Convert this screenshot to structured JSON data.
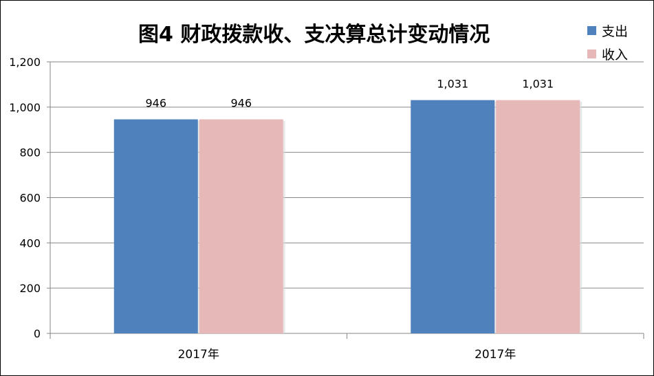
{
  "chart_data": {
    "type": "bar",
    "title": "图4  财政拨款收、支决算总计变动情况",
    "categories": [
      "2017年",
      "2017年"
    ],
    "series": [
      {
        "name": "支出",
        "color": "#4f81bd",
        "values": [
          946,
          1031
        ],
        "labels": [
          "946",
          "1,031"
        ]
      },
      {
        "name": "收入",
        "color": "#e6b9b8",
        "values": [
          946,
          1031
        ],
        "labels": [
          "946",
          "1,031"
        ]
      }
    ],
    "ylim": [
      0,
      1200
    ],
    "yticks": [
      0,
      200,
      400,
      600,
      800,
      1000,
      1200
    ],
    "ytick_labels": [
      "0",
      "200",
      "400",
      "600",
      "800",
      "1,000",
      "1,200"
    ],
    "grid": true,
    "legend_position": "top-right"
  }
}
